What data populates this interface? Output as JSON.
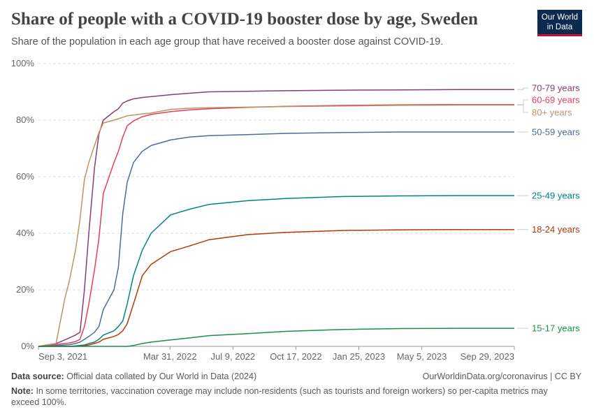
{
  "header": {
    "title": "Share of people with a COVID-19 booster dose by age, Sweden",
    "subtitle": "Share of the population in each age group that have received a booster dose against COVID-19.",
    "logo_text": "Our World in Data"
  },
  "footer": {
    "source_label": "Data source:",
    "source_text": "Official data collated by Our World in Data (2024)",
    "url_license": "OurWorldinData.org/coronavirus | CC BY",
    "note_label": "Note:",
    "note_text": "In some territories, vaccination coverage may include non-residents (such as tourists and foreign workers) so per-capita metrics may exceed 100%."
  },
  "chart_data": {
    "type": "line",
    "title": "Share of people with a COVID-19 booster dose by age, Sweden",
    "ylim": [
      0,
      100
    ],
    "xlim": [
      "2021-09-03",
      "2023-09-29"
    ],
    "yticks": [
      0,
      20,
      40,
      60,
      80,
      100
    ],
    "ytick_labels": [
      "0%",
      "20%",
      "40%",
      "60%",
      "80%",
      "100%"
    ],
    "xticks": [
      "2021-09-03",
      "2022-03-31",
      "2022-07-09",
      "2022-10-17",
      "2023-01-25",
      "2023-05-05",
      "2023-09-29"
    ],
    "xtick_labels": [
      "Sep 3, 2021",
      "Mar 31, 2022",
      "Jul 9, 2022",
      "Oct 17, 2022",
      "Jan 25, 2023",
      "May 5, 2023",
      "Sep 29, 2023"
    ],
    "grid": "horizontal dashed",
    "legend": "right, line-end labels",
    "x": [
      "2021-09-03",
      "2021-10-01",
      "2021-10-15",
      "2021-10-22",
      "2021-11-01",
      "2021-11-08",
      "2021-11-15",
      "2021-11-22",
      "2021-12-01",
      "2021-12-08",
      "2021-12-15",
      "2022-01-01",
      "2022-01-08",
      "2022-01-15",
      "2022-01-22",
      "2022-02-01",
      "2022-02-15",
      "2022-03-01",
      "2022-04-01",
      "2022-05-01",
      "2022-06-01",
      "2022-08-01",
      "2022-10-01",
      "2023-01-01",
      "2023-04-01",
      "2023-07-01",
      "2023-09-29"
    ],
    "series": [
      {
        "name": "70-79 years",
        "color": "#8a3c72",
        "values": [
          0,
          1,
          2.3,
          3,
          4,
          5,
          20,
          40,
          63,
          75,
          80,
          83,
          84,
          86,
          86.8,
          87.5,
          88,
          88.3,
          89,
          89.5,
          90,
          90.2,
          90.4,
          90.6,
          90.7,
          90.8,
          90.8
        ]
      },
      {
        "name": "60-69 years",
        "color": "#e0405e",
        "values": [
          0,
          0.7,
          1,
          1.2,
          1.7,
          2.5,
          7,
          15,
          27,
          38,
          54,
          65,
          69,
          74,
          78,
          79.7,
          81.2,
          82,
          83,
          83.6,
          84,
          84.5,
          84.9,
          85.2,
          85.4,
          85.5,
          85.5
        ]
      },
      {
        "name": "80+ years",
        "color": "#be9263",
        "values": [
          0,
          1,
          17,
          23,
          34,
          45,
          59,
          65,
          71,
          75.5,
          79,
          80,
          80.5,
          81,
          81.5,
          81.8,
          82.2,
          82.5,
          83.8,
          84.2,
          84.4,
          84.6,
          84.8,
          85,
          85.2,
          85.3,
          85.3
        ]
      },
      {
        "name": "50-59 years",
        "color": "#4c6a9c",
        "values": [
          0,
          0.3,
          0.5,
          0.6,
          1,
          1.5,
          2.5,
          3.5,
          5,
          7,
          13,
          20,
          28,
          47,
          58,
          65,
          69,
          71,
          73,
          74,
          74.5,
          74.9,
          75.3,
          75.6,
          75.8,
          75.8,
          75.8
        ]
      },
      {
        "name": "25-49 years",
        "color": "#00857e",
        "values": [
          0,
          0,
          0,
          0,
          0.2,
          0.3,
          0.5,
          1,
          1.5,
          2.5,
          4,
          5.5,
          7,
          9,
          15,
          25,
          34,
          40,
          46.5,
          48.5,
          50.2,
          51.5,
          52.3,
          53,
          53.2,
          53.3,
          53.3
        ]
      },
      {
        "name": "18-24 years",
        "color": "#b13a0a",
        "values": [
          0,
          0,
          0,
          0,
          0,
          0.1,
          0.3,
          0.5,
          1,
          1.5,
          2.5,
          3.5,
          4.2,
          5.5,
          8,
          15,
          25,
          29,
          33.5,
          35.5,
          37.7,
          39.5,
          40.3,
          41,
          41.2,
          41.3,
          41.3
        ]
      },
      {
        "name": "15-17 years",
        "color": "#18904a",
        "values": [
          0,
          0,
          0,
          0,
          0,
          0,
          0,
          0,
          0,
          0,
          0,
          0,
          0,
          0,
          0,
          0.3,
          1,
          1.5,
          2.3,
          3,
          3.8,
          4.5,
          5.3,
          6,
          6.3,
          6.4,
          6.4
        ]
      }
    ]
  }
}
